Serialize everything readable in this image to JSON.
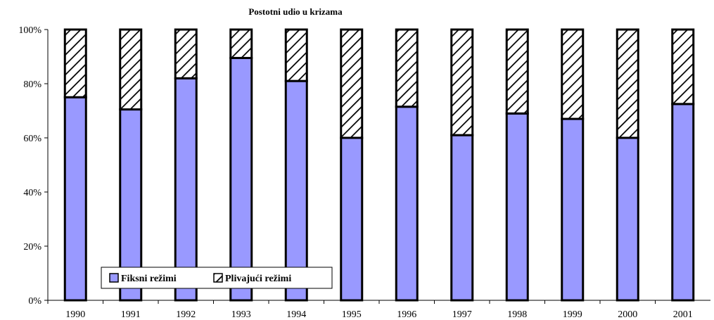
{
  "chart_data": {
    "type": "bar",
    "stacked": true,
    "percent": true,
    "title": "Postotni udio u krizama",
    "xlabel": "",
    "ylabel": "",
    "categories": [
      "1990",
      "1991",
      "1992",
      "1993",
      "1994",
      "1995",
      "1996",
      "1997",
      "1998",
      "1999",
      "2000",
      "2001"
    ],
    "series": [
      {
        "name": "Fiksni režimi",
        "values": [
          75,
          70.5,
          82,
          89.5,
          81,
          60,
          71.5,
          61,
          69,
          67,
          60,
          72.5
        ],
        "color": "#9999ff",
        "pattern": "solid"
      },
      {
        "name": "Plivajući režimi",
        "values": [
          25,
          29.5,
          18,
          10.5,
          19,
          40,
          28.5,
          39,
          31,
          33,
          40,
          27.5
        ],
        "color": "#ffffff",
        "pattern": "diagonal-hatch"
      }
    ],
    "yticks": [
      "0%",
      "20%",
      "40%",
      "60%",
      "80%",
      "100%"
    ],
    "ylim": [
      0,
      100
    ],
    "grid": false,
    "legend_position": "bottom-left inside"
  }
}
